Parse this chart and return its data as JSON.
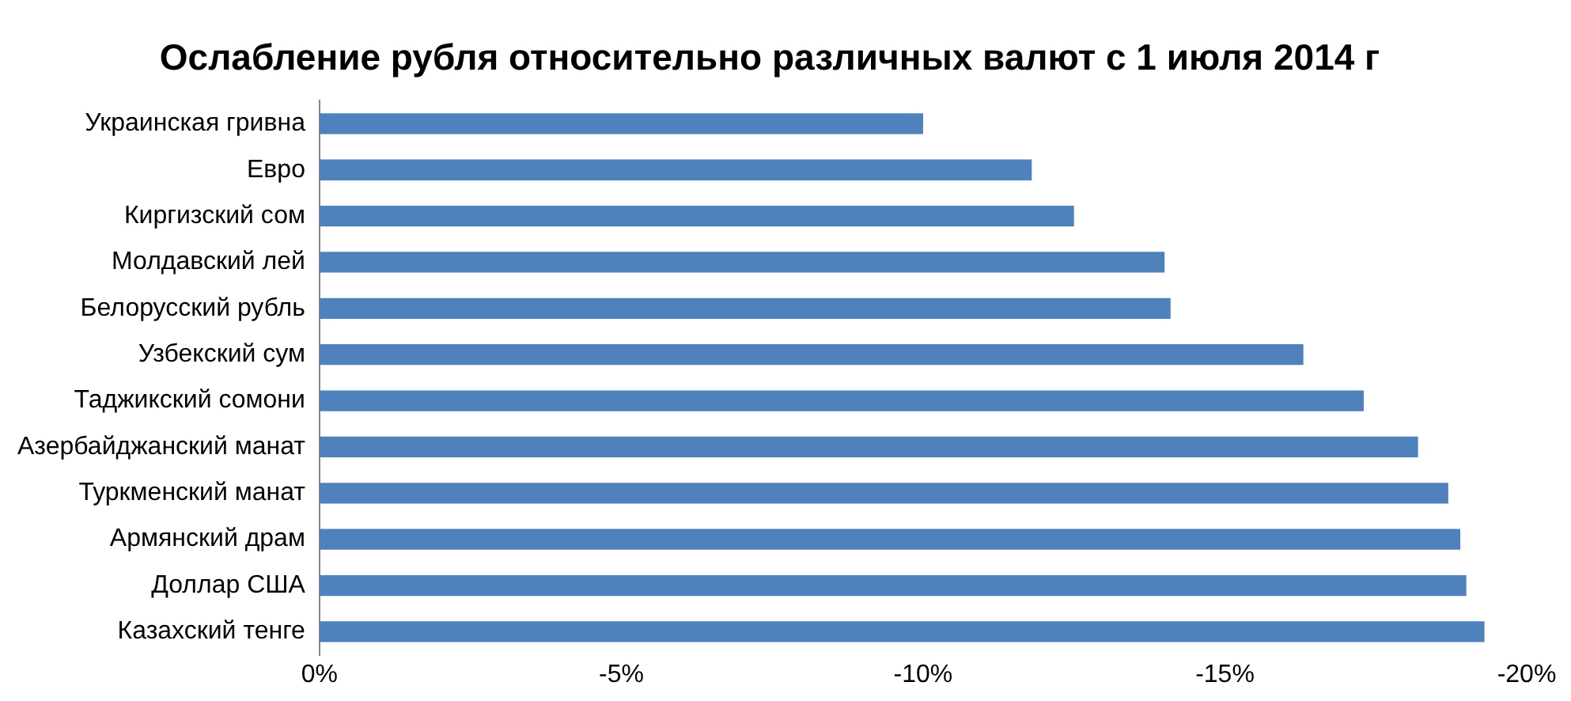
{
  "chart_data": {
    "type": "bar",
    "orientation": "horizontal",
    "title": "Ослабление рубля относительно различных валют с 1 июля 2014 г",
    "categories": [
      "Украинская гривна",
      "Евро",
      "Киргизский сом",
      "Молдавский лей",
      "Белорусский рубль",
      "Узбекский сум",
      "Таджикский сомони",
      "Азербайджанский манат",
      "Туркменский манат",
      "Армянский драм",
      "Доллар США",
      "Казахский тенге"
    ],
    "values": [
      -10.0,
      -11.8,
      -12.5,
      -14.0,
      -14.1,
      -16.3,
      -17.3,
      -18.2,
      -18.7,
      -18.9,
      -19.0,
      -19.3
    ],
    "color": "#4f81bd",
    "xlim": [
      0,
      -20
    ],
    "xticks": [
      {
        "value": 0,
        "label": "0%"
      },
      {
        "value": -5,
        "label": "-5%"
      },
      {
        "value": -10,
        "label": "-10%"
      },
      {
        "value": -15,
        "label": "-15%"
      },
      {
        "value": -20,
        "label": "-20%"
      }
    ],
    "grid": false,
    "legend": false
  }
}
